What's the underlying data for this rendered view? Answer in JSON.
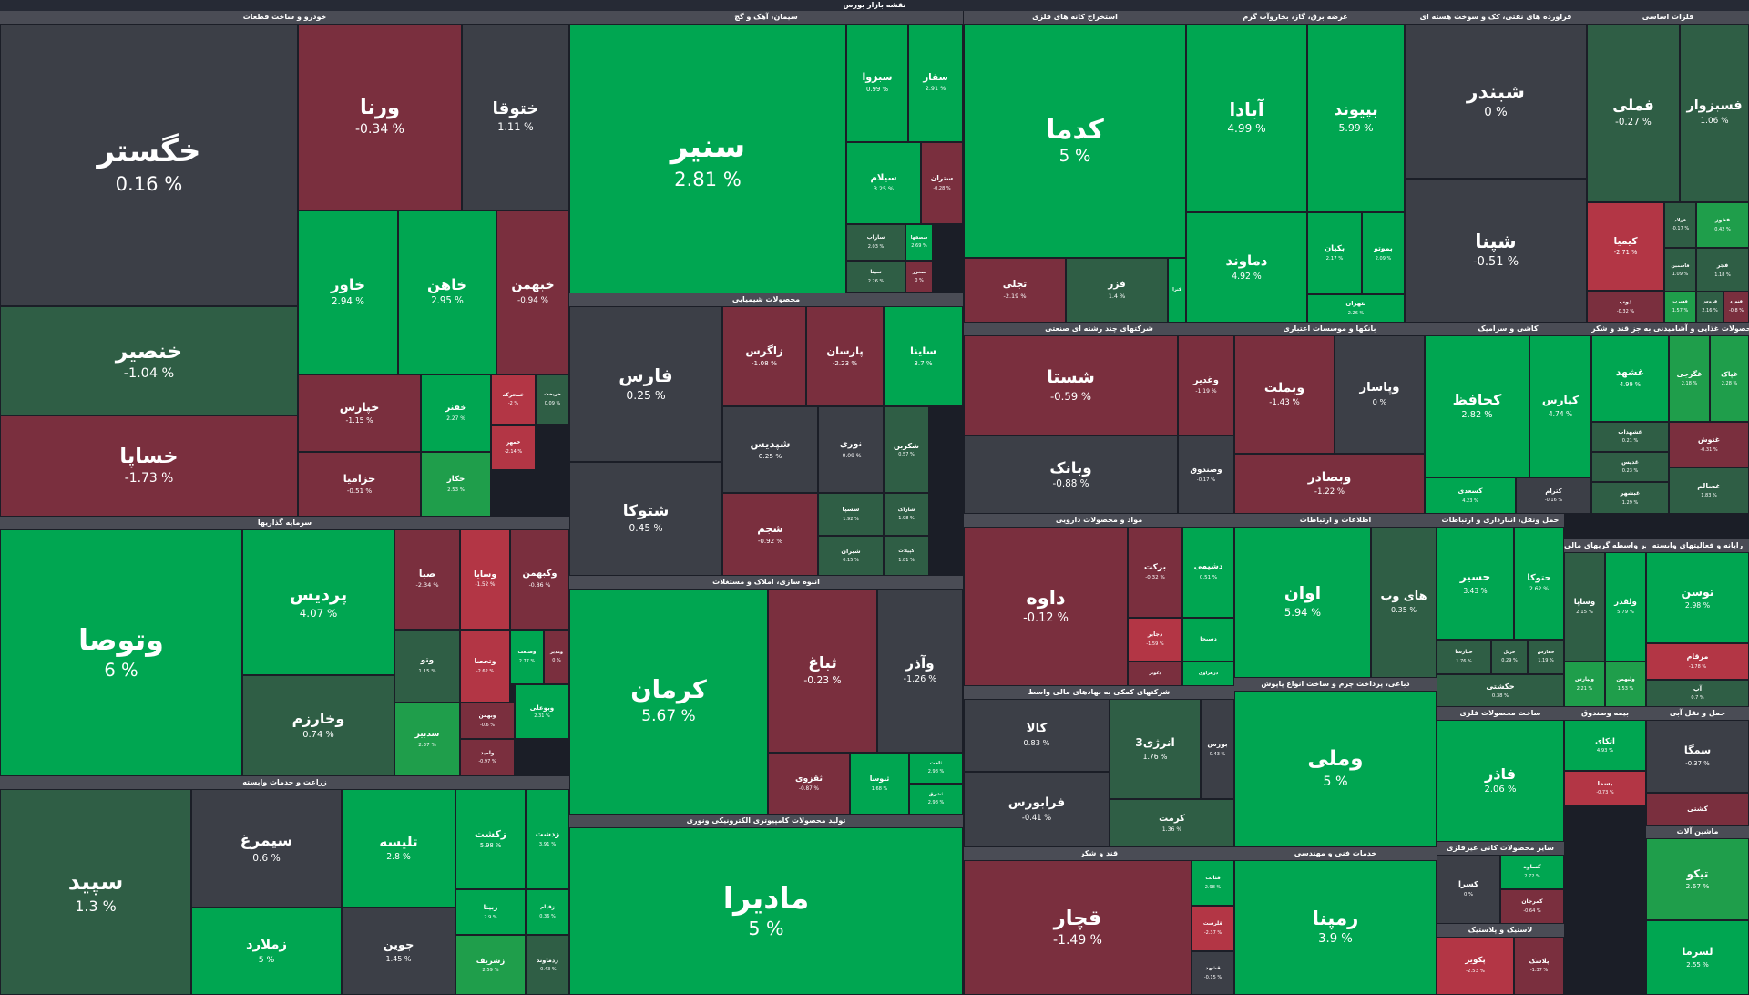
{
  "header": {
    "title": "نقشه بازار بورس"
  },
  "sectors": [
    {
      "id": "s0",
      "title": "خودرو و ساخت قطعات",
      "tiles": [
        {
          "name": "خگستر",
          "change": "0.16 %",
          "tone": "nt"
        },
        {
          "name": "ورنا",
          "change": "-0.34 %",
          "tone": "dn2"
        },
        {
          "name": "ختوقا",
          "change": "1.11 %",
          "tone": "nt"
        },
        {
          "name": "خاور",
          "change": "2.94 %",
          "tone": "up"
        },
        {
          "name": "خاهن",
          "change": "2.95 %",
          "tone": "up"
        },
        {
          "name": "خبهمن",
          "change": "-0.94 %",
          "tone": "dn2"
        },
        {
          "name": "خنصیر",
          "change": "-1.04 %",
          "tone": "nt2"
        },
        {
          "name": "خپارس",
          "change": "-1.15 %",
          "tone": "dn2"
        },
        {
          "name": "خفنر",
          "change": "2.27 %",
          "tone": "up"
        },
        {
          "name": "خساپا",
          "change": "-1.73 %",
          "tone": "dn2"
        },
        {
          "name": "خزامیا",
          "change": "-0.51 %",
          "tone": "dn2"
        },
        {
          "name": "خکار",
          "change": "2.53 %",
          "tone": "up2"
        },
        {
          "name": "خمحرکه",
          "change": "-2 %",
          "tone": "dn"
        },
        {
          "name": "خریخت",
          "change": "0.09 %",
          "tone": "nt2"
        },
        {
          "name": "خمهر",
          "change": "-2.14 %",
          "tone": "dn"
        }
      ]
    },
    {
      "id": "s1",
      "title": "سیمان، آهک و گچ",
      "tiles": [
        {
          "name": "سنیر",
          "change": "2.81 %",
          "tone": "up"
        },
        {
          "name": "سبزوا",
          "change": "0.99 %",
          "tone": "up"
        },
        {
          "name": "سقار",
          "change": "2.91 %",
          "tone": "up"
        },
        {
          "name": "سیلام",
          "change": "3.25 %",
          "tone": "up"
        },
        {
          "name": "ستران",
          "change": "-0.28 %",
          "tone": "dn2"
        },
        {
          "name": "ساراب",
          "change": "2.03 %",
          "tone": "nt2"
        },
        {
          "name": "سصفها",
          "change": "2.69 %",
          "tone": "up"
        },
        {
          "name": "سیتا",
          "change": "2.26 %",
          "tone": "nt2"
        },
        {
          "name": "سخزر",
          "change": "0 %",
          "tone": "dn2"
        }
      ]
    },
    {
      "id": "s2",
      "title": "استخراج کانه های فلزی",
      "tiles": [
        {
          "name": "کدما",
          "change": "5 %",
          "tone": "up"
        },
        {
          "name": "تجلی",
          "change": "-2.19 %",
          "tone": "dn2"
        },
        {
          "name": "فزر",
          "change": "1.4 %",
          "tone": "nt2"
        },
        {
          "name": "کنرا",
          "change": "",
          "tone": "up"
        }
      ]
    },
    {
      "id": "s3",
      "title": "عرضه برق، گاز، بخاروآب گرم",
      "tiles": [
        {
          "name": "آبادا",
          "change": "4.99 %",
          "tone": "up"
        },
        {
          "name": "بپیوند",
          "change": "5.99 %",
          "tone": "up"
        },
        {
          "name": "دماوند",
          "change": "4.92 %",
          "tone": "up"
        },
        {
          "name": "بکیان",
          "change": "2.17 %",
          "tone": "up"
        },
        {
          "name": "بموتو",
          "change": "2.09 %",
          "tone": "up"
        },
        {
          "name": "بتهران",
          "change": "2.26 %",
          "tone": "up"
        }
      ]
    },
    {
      "id": "s4",
      "title": "فراورده های نفتی، کک و سوخت هسته ای",
      "tiles": [
        {
          "name": "شبندر",
          "change": "0 %",
          "tone": "nt"
        },
        {
          "name": "شپنا",
          "change": "-0.51 %",
          "tone": "nt"
        }
      ]
    },
    {
      "id": "s5",
      "title": "فلزات اساسی",
      "tiles": [
        {
          "name": "فملی",
          "change": "-0.27 %",
          "tone": "nt2"
        },
        {
          "name": "فسبزوار",
          "change": "1.06 %",
          "tone": "nt2"
        },
        {
          "name": "کیمیا",
          "change": "-2.71 %",
          "tone": "dn"
        },
        {
          "name": "فولاد",
          "change": "-0.17 %",
          "tone": "nt2"
        },
        {
          "name": "فخوز",
          "change": "0.42 %",
          "tone": "up2"
        },
        {
          "name": "فاسمین",
          "change": "1.09 %",
          "tone": "nt2"
        },
        {
          "name": "فجر",
          "change": "1.18 %",
          "tone": "nt2"
        },
        {
          "name": "ذوب",
          "change": "-0.32 %",
          "tone": "dn2"
        },
        {
          "name": "فسرب",
          "change": "1.57 %",
          "tone": "up2"
        },
        {
          "name": "فروس",
          "change": "2.16 %",
          "tone": "nt2"
        },
        {
          "name": "فنورد",
          "change": "-0.8 %",
          "tone": "dn2"
        }
      ]
    },
    {
      "id": "s6",
      "title": "محصولات شیمیایی",
      "tiles": [
        {
          "name": "فارس",
          "change": "0.25 %",
          "tone": "nt"
        },
        {
          "name": "زاگرس",
          "change": "-1.08 %",
          "tone": "dn2"
        },
        {
          "name": "پارسان",
          "change": "-2.23 %",
          "tone": "dn2"
        },
        {
          "name": "ساینا",
          "change": "3.7 %",
          "tone": "up"
        },
        {
          "name": "شپدیس",
          "change": "0.25 %",
          "tone": "nt"
        },
        {
          "name": "نوری",
          "change": "-0.09 %",
          "tone": "nt"
        },
        {
          "name": "شکربن",
          "change": "0.57 %",
          "tone": "nt2"
        },
        {
          "name": "شتوکا",
          "change": "0.45 %",
          "tone": "nt"
        },
        {
          "name": "شجم",
          "change": "-0.92 %",
          "tone": "dn2"
        },
        {
          "name": "شسپا",
          "change": "1.92 %",
          "tone": "nt2"
        },
        {
          "name": "شاراک",
          "change": "1.98 %",
          "tone": "nt2"
        },
        {
          "name": "شیران",
          "change": "0.15 %",
          "tone": "nt2"
        },
        {
          "name": "کپیلات",
          "change": "1.81 %",
          "tone": "nt2"
        }
      ]
    },
    {
      "id": "s7",
      "title": "شرکتهای چند رشته ای صنعتی",
      "tiles": [
        {
          "name": "شستا",
          "change": "-0.59 %",
          "tone": "dn2"
        },
        {
          "name": "وغدیر",
          "change": "-1.19 %",
          "tone": "dn2"
        },
        {
          "name": "وبانک",
          "change": "-0.88 %",
          "tone": "nt"
        },
        {
          "name": "وصندوق",
          "change": "-0.17 %",
          "tone": "nt"
        }
      ]
    },
    {
      "id": "s8",
      "title": "بانکها و موسسات اعتباری",
      "tiles": [
        {
          "name": "وبملت",
          "change": "-1.43 %",
          "tone": "dn2"
        },
        {
          "name": "وپاسار",
          "change": "0 %",
          "tone": "nt"
        },
        {
          "name": "وبصادر",
          "change": "-1.22 %",
          "tone": "dn2"
        }
      ]
    },
    {
      "id": "s9",
      "title": "کاشی و سرامیک",
      "tiles": [
        {
          "name": "کحافظ",
          "change": "2.82 %",
          "tone": "up"
        },
        {
          "name": "کپارس",
          "change": "4.74 %",
          "tone": "up"
        },
        {
          "name": "کسعدی",
          "change": "4.23 %",
          "tone": "up"
        },
        {
          "name": "کترام",
          "change": "-0.16 %",
          "tone": "nt"
        }
      ]
    },
    {
      "id": "s10",
      "title": "محصولات غذایی و آشامیدنی به جز قند و شکر",
      "tiles": [
        {
          "name": "غشهد",
          "change": "4.99 %",
          "tone": "up"
        },
        {
          "name": "غگرجی",
          "change": "2.18 %",
          "tone": "up2"
        },
        {
          "name": "غپاک",
          "change": "2.28 %",
          "tone": "up2"
        },
        {
          "name": "غشهداب",
          "change": "0.21 %",
          "tone": "nt2"
        },
        {
          "name": "غدیس",
          "change": "0.23 %",
          "tone": "nt2"
        },
        {
          "name": "غبشهر",
          "change": "1.29 %",
          "tone": "nt2"
        },
        {
          "name": "غنوش",
          "change": "-0.31 %",
          "tone": "dn2"
        },
        {
          "name": "غسالم",
          "change": "1.83 %",
          "tone": "nt2"
        }
      ]
    },
    {
      "id": "s11",
      "title": "سرمایه گذاریها",
      "tiles": [
        {
          "name": "وتوصا",
          "change": "6 %",
          "tone": "up"
        },
        {
          "name": "پردیس",
          "change": "4.07 %",
          "tone": "up"
        },
        {
          "name": "صبا",
          "change": "-2.34 %",
          "tone": "dn2"
        },
        {
          "name": "وسایا",
          "change": "-1.52 %",
          "tone": "dn"
        },
        {
          "name": "وکبهمن",
          "change": "-0.86 %",
          "tone": "dn2"
        },
        {
          "name": "وخارزم",
          "change": "0.74 %",
          "tone": "nt2"
        },
        {
          "name": "وتو",
          "change": "1.15 %",
          "tone": "nt2"
        },
        {
          "name": "وتخصا",
          "change": "-2.62 %",
          "tone": "dn"
        },
        {
          "name": "وصنعت",
          "change": "2.77 %",
          "tone": "up"
        },
        {
          "name": "ومدیر",
          "change": "0 %",
          "tone": "dn2"
        },
        {
          "name": "سدبیر",
          "change": "2.37 %",
          "tone": "up2"
        },
        {
          "name": "وبهمن",
          "change": "-0.6 %",
          "tone": "dn2"
        },
        {
          "name": "وبوعلی",
          "change": "2.31 %",
          "tone": "up"
        },
        {
          "name": "وامید",
          "change": "-0.97 %",
          "tone": "dn2"
        }
      ]
    },
    {
      "id": "s12",
      "title": "انبوه سازی، املاک و مستغلات",
      "tiles": [
        {
          "name": "کرمان",
          "change": "5.67 %",
          "tone": "up"
        },
        {
          "name": "ثباغ",
          "change": "-0.23 %",
          "tone": "dn2"
        },
        {
          "name": "وآذر",
          "change": "-1.26 %",
          "tone": "nt"
        },
        {
          "name": "ثقزوی",
          "change": "-0.87 %",
          "tone": "dn2"
        },
        {
          "name": "ثنوسا",
          "change": "1.68 %",
          "tone": "up"
        },
        {
          "name": "ثاخت",
          "change": "2.98 %",
          "tone": "up"
        },
        {
          "name": "ثشرق",
          "change": "2.98 %",
          "tone": "up"
        }
      ]
    },
    {
      "id": "s13",
      "title": "مواد و محصولات دارویی",
      "tiles": [
        {
          "name": "داوه",
          "change": "-0.12 %",
          "tone": "dn2"
        },
        {
          "name": "برکت",
          "change": "-0.32 %",
          "tone": "dn2"
        },
        {
          "name": "دشیمی",
          "change": "0.51 %",
          "tone": "up"
        },
        {
          "name": "دجابر",
          "change": "-1.59 %",
          "tone": "dn"
        },
        {
          "name": "دسبحا",
          "change": "",
          "tone": "up"
        },
        {
          "name": "دزهراوی",
          "change": "",
          "tone": "up"
        },
        {
          "name": "دکوثر",
          "change": "",
          "tone": "dn2"
        }
      ]
    },
    {
      "id": "s14",
      "title": "اطلاعات و ارتباطات",
      "tiles": [
        {
          "name": "اوان",
          "change": "5.94 %",
          "tone": "up"
        },
        {
          "name": "های وب",
          "change": "0.35 %",
          "tone": "nt2"
        }
      ]
    },
    {
      "id": "s15",
      "title": "حمل ونقل، انبارداری و ارتباطات",
      "tiles": [
        {
          "name": "حسیر",
          "change": "3.43 %",
          "tone": "up"
        },
        {
          "name": "حتوکا",
          "change": "2.62 %",
          "tone": "up"
        },
        {
          "name": "حپارسا",
          "change": "1.76 %",
          "tone": "nt2"
        },
        {
          "name": "حریل",
          "change": "0.29 %",
          "tone": "nt2"
        },
        {
          "name": "حفارس",
          "change": "1.19 %",
          "tone": "nt2"
        },
        {
          "name": "حکشتی",
          "change": "0.38 %",
          "tone": "nt2"
        }
      ]
    },
    {
      "id": "s16",
      "title": "شرکتهای کمکی به نهادهای مالی واسط",
      "tiles": [
        {
          "name": "کالا",
          "change": "0.83 %",
          "tone": "nt"
        },
        {
          "name": "انرژی3",
          "change": "1.76 %",
          "tone": "nt2"
        },
        {
          "name": "بورس",
          "change": "0.43 %",
          "tone": "nt"
        },
        {
          "name": "فرابورس",
          "change": "-0.41 %",
          "tone": "nt"
        },
        {
          "name": "کرمت",
          "change": "1.36 %",
          "tone": "nt2"
        }
      ]
    },
    {
      "id": "s17",
      "title": "دباغی، پرداخت چرم و ساخت انواع پاپوش",
      "tiles": [
        {
          "name": "وملی",
          "change": "5 %",
          "tone": "up"
        }
      ]
    },
    {
      "id": "s18",
      "title": "زراعت و خدمات وابسته",
      "tiles": [
        {
          "name": "سپید",
          "change": "1.3 %",
          "tone": "nt2"
        },
        {
          "name": "سیمرغ",
          "change": "0.6 %",
          "tone": "nt"
        },
        {
          "name": "تلیسه",
          "change": "2.8 %",
          "tone": "up"
        },
        {
          "name": "زکشت",
          "change": "5.98 %",
          "tone": "up"
        },
        {
          "name": "زدشت",
          "change": "3.91 %",
          "tone": "up"
        },
        {
          "name": "زملارد",
          "change": "5 %",
          "tone": "up"
        },
        {
          "name": "جوین",
          "change": "1.45 %",
          "tone": "nt"
        },
        {
          "name": "زبینا",
          "change": "2.9 %",
          "tone": "up"
        },
        {
          "name": "زقیام",
          "change": "0.36 %",
          "tone": "up"
        },
        {
          "name": "زشریف",
          "change": "2.59 %",
          "tone": "up2"
        },
        {
          "name": "زدماوند",
          "change": "-0.43 %",
          "tone": "nt2"
        }
      ]
    },
    {
      "id": "s19",
      "title": "تولید محصولات کامپیوتری الکترونیکی ونوری",
      "tiles": [
        {
          "name": "مادیرا",
          "change": "5 %",
          "tone": "up"
        }
      ]
    },
    {
      "id": "s20",
      "title": "قند و شکر",
      "tiles": [
        {
          "name": "قچار",
          "change": "-1.49 %",
          "tone": "dn2"
        },
        {
          "name": "قثابت",
          "change": "2.98 %",
          "tone": "up"
        },
        {
          "name": "قلرست",
          "change": "-2.37 %",
          "tone": "dn"
        },
        {
          "name": "قشهد",
          "change": "-0.15 %",
          "tone": "nt"
        }
      ]
    },
    {
      "id": "s21",
      "title": "خدمات فنی و مهندسی",
      "tiles": [
        {
          "name": "رمپنا",
          "change": "3.9 %",
          "tone": "up"
        }
      ]
    },
    {
      "id": "s22",
      "title": "ساخت محصولات فلزی",
      "tiles": [
        {
          "name": "فاذر",
          "change": "2.06 %",
          "tone": "up"
        }
      ]
    },
    {
      "id": "s23",
      "title": "سایر محصولات کانی غیرفلزی",
      "tiles": [
        {
          "name": "کسرا",
          "change": "0 %",
          "tone": "nt"
        },
        {
          "name": "کساوه",
          "change": "2.72 %",
          "tone": "up"
        },
        {
          "name": "کمرجان",
          "change": "-0.64 %",
          "tone": "dn2"
        }
      ]
    },
    {
      "id": "s24",
      "title": "لاستیک و پلاستیک",
      "tiles": [
        {
          "name": "پکویر",
          "change": "-2.53 %",
          "tone": "dn"
        },
        {
          "name": "پلاسک",
          "change": "-1.37 %",
          "tone": "dn2"
        }
      ]
    },
    {
      "id": "s25",
      "title": "بیمه وصندوق",
      "tiles": [
        {
          "name": "اتکای",
          "change": "4.93 %",
          "tone": "up"
        },
        {
          "name": "بسما",
          "change": "-0.73 %",
          "tone": "dn"
        }
      ]
    },
    {
      "id": "s26",
      "title": "سایر واسطه گریهای مالی",
      "tiles": [
        {
          "name": "وساپا",
          "change": "2.15 %",
          "tone": "nt2"
        },
        {
          "name": "ولقدر",
          "change": "5.79 %",
          "tone": "up"
        },
        {
          "name": "ولپارس",
          "change": "2.21 %",
          "tone": "up2"
        },
        {
          "name": "ولبهمن",
          "change": "1.53 %",
          "tone": "up2"
        }
      ]
    },
    {
      "id": "s27",
      "title": "رایانه و فعالیتهای وابسته",
      "tiles": [
        {
          "name": "توسن",
          "change": "2.98 %",
          "tone": "up"
        },
        {
          "name": "مرقام",
          "change": "-1.78 %",
          "tone": "dn"
        },
        {
          "name": "آپ",
          "change": "0.7 %",
          "tone": "nt2"
        }
      ]
    },
    {
      "id": "s28",
      "title": "حمل و نقل آبی",
      "tiles": [
        {
          "name": "سمگا",
          "change": "-0.37 %",
          "tone": "nt"
        },
        {
          "name": "کشتی",
          "change": "",
          "tone": "dn2"
        }
      ]
    },
    {
      "id": "s29",
      "title": "ماشین آلات",
      "tiles": [
        {
          "name": "تیکو",
          "change": "2.67 %",
          "tone": "up2"
        },
        {
          "name": "لسرما",
          "change": "2.55 %",
          "tone": "up"
        }
      ]
    }
  ]
}
